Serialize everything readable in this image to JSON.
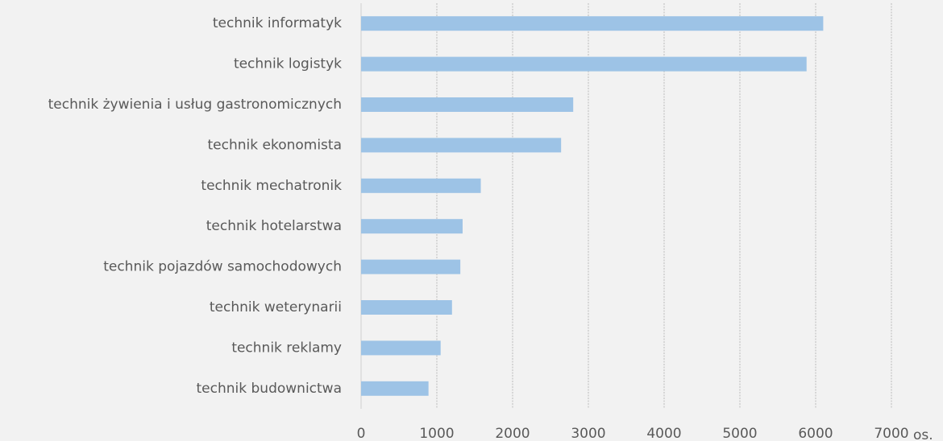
{
  "chart_data": {
    "type": "barh",
    "categories": [
      "technik informatyk",
      "technik logistyk",
      "technik żywienia i usług gastronomicznych",
      "technik ekonomista",
      "technik mechatronik",
      "technik hotelarstwa",
      "technik pojazdów samochodowych",
      "technik weterynarii",
      "technik reklamy",
      "technik budownictwa"
    ],
    "values": [
      6100,
      5880,
      2800,
      2640,
      1580,
      1340,
      1310,
      1200,
      1050,
      890
    ],
    "color": "#9dc3e6",
    "xlabel": "os.",
    "xlim": [
      0,
      7000
    ],
    "xticks": [
      0,
      1000,
      2000,
      3000,
      4000,
      5000,
      6000,
      7000
    ],
    "grid": true
  }
}
